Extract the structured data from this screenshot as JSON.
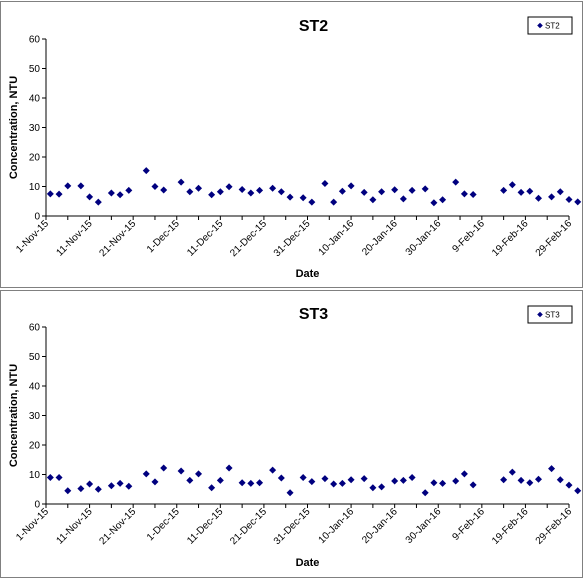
{
  "chart_data": [
    {
      "type": "scatter",
      "title": "ST2",
      "xlabel": "Date",
      "ylabel": "Concentration, NTU",
      "ylim": [
        0,
        60
      ],
      "y_ticks": [
        "0",
        "10",
        "20",
        "30",
        "40",
        "50",
        "60"
      ],
      "x_range": [
        "2015-11-01",
        "2016-02-29"
      ],
      "x_tick_labels": [
        "1-Nov-15",
        "11-Nov-15",
        "21-Nov-15",
        "1-Dec-15",
        "11-Dec-15",
        "21-Dec-15",
        "31-Dec-15",
        "10-Jan-16",
        "20-Jan-16",
        "30-Jan-16",
        "9-Feb-16",
        "19-Feb-16",
        "29-Feb-16"
      ],
      "legend": "top-right",
      "marker": "diamond",
      "color": "#00007f",
      "series": [
        {
          "name": "ST2",
          "points": [
            {
              "x": "2015-11-02",
              "y": 7.5
            },
            {
              "x": "2015-11-04",
              "y": 7.4
            },
            {
              "x": "2015-11-06",
              "y": 10.2
            },
            {
              "x": "2015-11-09",
              "y": 10.2
            },
            {
              "x": "2015-11-11",
              "y": 6.5
            },
            {
              "x": "2015-11-13",
              "y": 4.7
            },
            {
              "x": "2015-11-16",
              "y": 7.8
            },
            {
              "x": "2015-11-18",
              "y": 7.2
            },
            {
              "x": "2015-11-20",
              "y": 8.7
            },
            {
              "x": "2015-11-24",
              "y": 15.4
            },
            {
              "x": "2015-11-26",
              "y": 10.0
            },
            {
              "x": "2015-11-28",
              "y": 8.8
            },
            {
              "x": "2015-12-02",
              "y": 11.5
            },
            {
              "x": "2015-12-04",
              "y": 8.2
            },
            {
              "x": "2015-12-06",
              "y": 9.4
            },
            {
              "x": "2015-12-09",
              "y": 7.2
            },
            {
              "x": "2015-12-11",
              "y": 8.2
            },
            {
              "x": "2015-12-13",
              "y": 9.9
            },
            {
              "x": "2015-12-16",
              "y": 9.0
            },
            {
              "x": "2015-12-18",
              "y": 7.8
            },
            {
              "x": "2015-12-20",
              "y": 8.7
            },
            {
              "x": "2015-12-23",
              "y": 9.4
            },
            {
              "x": "2015-12-25",
              "y": 8.2
            },
            {
              "x": "2015-12-27",
              "y": 6.4
            },
            {
              "x": "2015-12-30",
              "y": 6.2
            },
            {
              "x": "2016-01-01",
              "y": 4.7
            },
            {
              "x": "2016-01-04",
              "y": 11.0
            },
            {
              "x": "2016-01-06",
              "y": 4.7
            },
            {
              "x": "2016-01-08",
              "y": 8.4
            },
            {
              "x": "2016-01-10",
              "y": 10.2
            },
            {
              "x": "2016-01-13",
              "y": 8.0
            },
            {
              "x": "2016-01-15",
              "y": 5.5
            },
            {
              "x": "2016-01-17",
              "y": 8.2
            },
            {
              "x": "2016-01-20",
              "y": 8.9
            },
            {
              "x": "2016-01-22",
              "y": 5.8
            },
            {
              "x": "2016-01-24",
              "y": 8.7
            },
            {
              "x": "2016-01-27",
              "y": 9.2
            },
            {
              "x": "2016-01-29",
              "y": 4.5
            },
            {
              "x": "2016-01-31",
              "y": 5.5
            },
            {
              "x": "2016-02-03",
              "y": 11.5
            },
            {
              "x": "2016-02-05",
              "y": 7.5
            },
            {
              "x": "2016-02-07",
              "y": 7.3
            },
            {
              "x": "2016-02-14",
              "y": 8.7
            },
            {
              "x": "2016-02-16",
              "y": 10.6
            },
            {
              "x": "2016-02-18",
              "y": 8.0
            },
            {
              "x": "2016-02-20",
              "y": 8.4
            },
            {
              "x": "2016-02-22",
              "y": 6.0
            },
            {
              "x": "2016-02-25",
              "y": 6.5
            },
            {
              "x": "2016-02-27",
              "y": 8.2
            },
            {
              "x": "2016-02-29",
              "y": 5.6
            },
            {
              "x": "2016-03-02",
              "y": 4.8
            }
          ]
        }
      ]
    },
    {
      "type": "scatter",
      "title": "ST3",
      "xlabel": "Date",
      "ylabel": "Concentration, NTU",
      "ylim": [
        0,
        60
      ],
      "y_ticks": [
        "0",
        "10",
        "20",
        "30",
        "40",
        "50",
        "60"
      ],
      "x_range": [
        "2015-11-01",
        "2016-02-29"
      ],
      "x_tick_labels": [
        "1-Nov-15",
        "11-Nov-15",
        "21-Nov-15",
        "1-Dec-15",
        "11-Dec-15",
        "21-Dec-15",
        "31-Dec-15",
        "10-Jan-16",
        "20-Jan-16",
        "30-Jan-16",
        "9-Feb-16",
        "19-Feb-16",
        "29-Feb-16"
      ],
      "legend": "top-right",
      "marker": "diamond",
      "color": "#00007f",
      "series": [
        {
          "name": "ST3",
          "points": [
            {
              "x": "2015-11-02",
              "y": 9.0
            },
            {
              "x": "2015-11-04",
              "y": 9.0
            },
            {
              "x": "2015-11-06",
              "y": 4.5
            },
            {
              "x": "2015-11-09",
              "y": 5.2
            },
            {
              "x": "2015-11-11",
              "y": 6.8
            },
            {
              "x": "2015-11-13",
              "y": 5.0
            },
            {
              "x": "2015-11-16",
              "y": 6.2
            },
            {
              "x": "2015-11-18",
              "y": 7.0
            },
            {
              "x": "2015-11-20",
              "y": 6.0
            },
            {
              "x": "2015-11-24",
              "y": 10.2
            },
            {
              "x": "2015-11-26",
              "y": 7.5
            },
            {
              "x": "2015-11-28",
              "y": 12.2
            },
            {
              "x": "2015-12-02",
              "y": 11.2
            },
            {
              "x": "2015-12-04",
              "y": 8.0
            },
            {
              "x": "2015-12-06",
              "y": 10.2
            },
            {
              "x": "2015-12-09",
              "y": 5.5
            },
            {
              "x": "2015-12-11",
              "y": 8.0
            },
            {
              "x": "2015-12-13",
              "y": 12.2
            },
            {
              "x": "2015-12-16",
              "y": 7.2
            },
            {
              "x": "2015-12-18",
              "y": 7.0
            },
            {
              "x": "2015-12-20",
              "y": 7.2
            },
            {
              "x": "2015-12-23",
              "y": 11.5
            },
            {
              "x": "2015-12-25",
              "y": 8.8
            },
            {
              "x": "2015-12-27",
              "y": 3.8
            },
            {
              "x": "2015-12-30",
              "y": 9.0
            },
            {
              "x": "2016-01-01",
              "y": 7.6
            },
            {
              "x": "2016-01-04",
              "y": 8.6
            },
            {
              "x": "2016-01-06",
              "y": 6.8
            },
            {
              "x": "2016-01-08",
              "y": 7.0
            },
            {
              "x": "2016-01-10",
              "y": 8.2
            },
            {
              "x": "2016-01-13",
              "y": 8.6
            },
            {
              "x": "2016-01-15",
              "y": 5.5
            },
            {
              "x": "2016-01-17",
              "y": 5.8
            },
            {
              "x": "2016-01-20",
              "y": 7.8
            },
            {
              "x": "2016-01-22",
              "y": 8.0
            },
            {
              "x": "2016-01-24",
              "y": 9.0
            },
            {
              "x": "2016-01-27",
              "y": 3.8
            },
            {
              "x": "2016-01-29",
              "y": 7.2
            },
            {
              "x": "2016-01-31",
              "y": 7.0
            },
            {
              "x": "2016-02-03",
              "y": 7.8
            },
            {
              "x": "2016-02-05",
              "y": 10.2
            },
            {
              "x": "2016-02-07",
              "y": 6.5
            },
            {
              "x": "2016-02-14",
              "y": 8.2
            },
            {
              "x": "2016-02-16",
              "y": 10.8
            },
            {
              "x": "2016-02-18",
              "y": 8.0
            },
            {
              "x": "2016-02-20",
              "y": 7.2
            },
            {
              "x": "2016-02-22",
              "y": 8.4
            },
            {
              "x": "2016-02-25",
              "y": 12.0
            },
            {
              "x": "2016-02-27",
              "y": 8.2
            },
            {
              "x": "2016-02-29",
              "y": 6.4
            },
            {
              "x": "2016-03-02",
              "y": 4.5
            }
          ]
        }
      ]
    }
  ]
}
